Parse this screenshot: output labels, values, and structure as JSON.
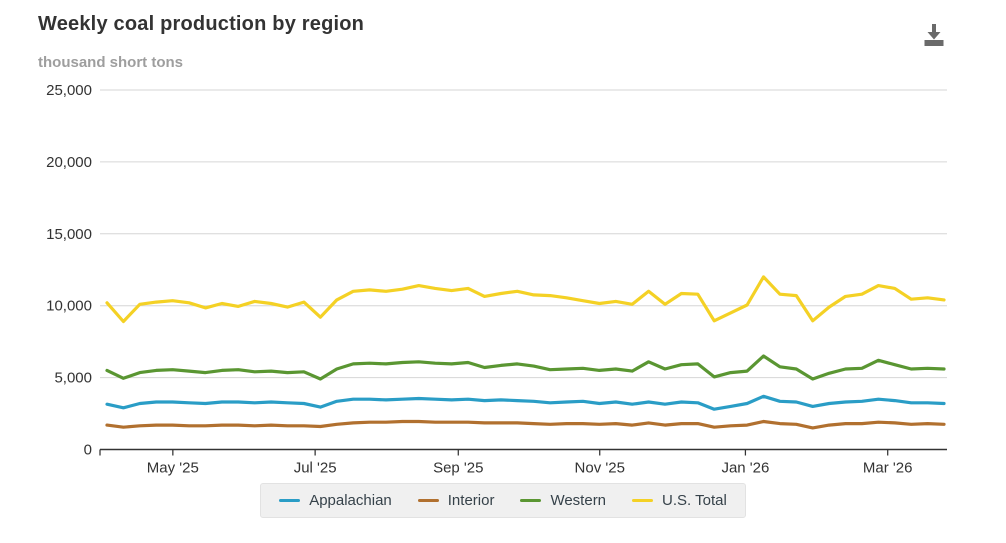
{
  "header": {
    "title": "Weekly coal production by region",
    "subtitle": "thousand short tons"
  },
  "icons": {
    "header_action": "download-icon"
  },
  "colors": {
    "appalachian": "#2a9dc6",
    "interior": "#b1702f",
    "western": "#5a9632",
    "us_total": "#f4d125",
    "gridline": "#d6d6d6",
    "axis": "#333333",
    "title_text": "#333333",
    "subtitle_text": "#9e9e9e",
    "legend_bg": "#f0f0f0",
    "legend_border": "#e2e2e2",
    "legend_text": "#36424a",
    "download_icon": "#6a6a6a"
  },
  "chart_data": {
    "type": "line",
    "title": "Weekly coal production by region",
    "ylabel": "thousand short tons",
    "xlabel": "",
    "ylim": [
      0,
      25000
    ],
    "ytick_interval": 5000,
    "ytick_labels": [
      "0",
      "5,000",
      "10,000",
      "15,000",
      "20,000",
      "25,000"
    ],
    "xticks": [
      {
        "label": "May '25",
        "pos": 0.086
      },
      {
        "label": "Jul '25",
        "pos": 0.254
      },
      {
        "label": "Sep '25",
        "pos": 0.423
      },
      {
        "label": "Nov '25",
        "pos": 0.59
      },
      {
        "label": "Jan '26",
        "pos": 0.762
      },
      {
        "label": "Mar '26",
        "pos": 0.93
      }
    ],
    "x_description": "52 weekly data points spanning early April 2025 through late March 2026",
    "grid": true,
    "legend_position": "bottom",
    "series": [
      {
        "name": "Appalachian",
        "color": "#2a9dc6",
        "values": [
          3150,
          2900,
          3200,
          3300,
          3300,
          3250,
          3200,
          3300,
          3300,
          3250,
          3300,
          3250,
          3200,
          2950,
          3350,
          3500,
          3500,
          3450,
          3500,
          3550,
          3500,
          3450,
          3500,
          3400,
          3450,
          3400,
          3350,
          3250,
          3300,
          3350,
          3200,
          3300,
          3150,
          3300,
          3150,
          3300,
          3250,
          2800,
          3000,
          3200,
          3700,
          3350,
          3300,
          3000,
          3200,
          3300,
          3350,
          3500,
          3400,
          3250,
          3250,
          3200
        ]
      },
      {
        "name": "Interior",
        "color": "#b1702f",
        "values": [
          1700,
          1550,
          1650,
          1700,
          1700,
          1650,
          1650,
          1700,
          1700,
          1650,
          1700,
          1650,
          1650,
          1600,
          1750,
          1850,
          1900,
          1900,
          1950,
          1950,
          1900,
          1900,
          1900,
          1850,
          1850,
          1850,
          1800,
          1750,
          1800,
          1800,
          1750,
          1800,
          1700,
          1850,
          1700,
          1800,
          1800,
          1550,
          1650,
          1700,
          1950,
          1800,
          1750,
          1500,
          1700,
          1800,
          1800,
          1900,
          1850,
          1750,
          1800,
          1750
        ]
      },
      {
        "name": "Western",
        "color": "#5a9632",
        "values": [
          5500,
          4950,
          5350,
          5500,
          5550,
          5450,
          5350,
          5500,
          5550,
          5400,
          5450,
          5350,
          5400,
          4900,
          5600,
          5950,
          6000,
          5950,
          6050,
          6100,
          6000,
          5950,
          6050,
          5700,
          5850,
          5950,
          5800,
          5550,
          5600,
          5650,
          5500,
          5600,
          5450,
          6100,
          5600,
          5900,
          5950,
          5050,
          5350,
          5450,
          6500,
          5750,
          5600,
          4900,
          5300,
          5600,
          5650,
          6200,
          5900,
          5600,
          5650,
          5600
        ]
      },
      {
        "name": "U.S. Total",
        "color": "#f4d125",
        "values": [
          10200,
          8900,
          10100,
          10250,
          10350,
          10200,
          9850,
          10150,
          9950,
          10300,
          10150,
          9900,
          10250,
          9200,
          10400,
          11000,
          11100,
          11000,
          11150,
          11400,
          11200,
          11050,
          11200,
          10650,
          10850,
          11000,
          10750,
          10700,
          10550,
          10350,
          10150,
          10300,
          10100,
          11000,
          10100,
          10850,
          10800,
          8950,
          9500,
          10050,
          12000,
          10800,
          10700,
          8950,
          9900,
          10650,
          10800,
          11400,
          11200,
          10450,
          10550,
          10400
        ]
      }
    ]
  }
}
